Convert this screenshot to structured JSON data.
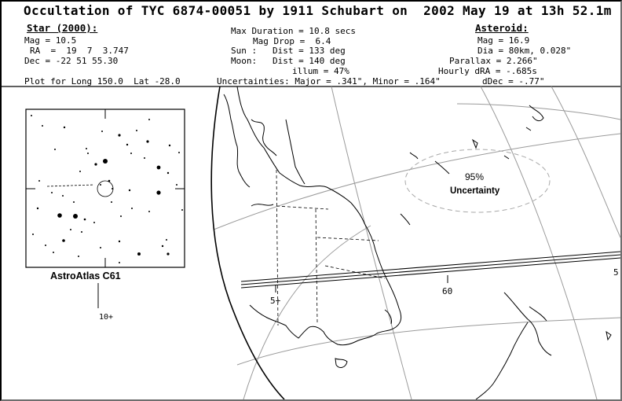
{
  "title": "Occultation of TYC 6874-00051 by 1911 Schubart on  2002 May 19 at 13h 52.1m",
  "star": {
    "header": "Star (2000):",
    "mag": "Mag = 10.5",
    "ra": "RA  =  19  7  3.747",
    "dec": "Dec = -22 51 55.30"
  },
  "event": {
    "max_duration": "Max Duration = 10.8 secs",
    "mag_drop": "Mag Drop =  6.4",
    "sun": "Sun :   Dist = 133 deg",
    "moon": "Moon:   Dist = 140 deg",
    "illum": "illum = 47%"
  },
  "asteroid": {
    "header": "Asteroid:",
    "mag": "Mag = 16.9",
    "dia": "Dia = 80km, 0.028\"",
    "parallax": "Parallax = 2.266\"",
    "hourly_dra": "Hourly dRA = -.685s",
    "ddec": "dDec = -.77\""
  },
  "plot_for": "Plot for Long 150.0  Lat -28.0",
  "uncertainties": "Uncertainties: Major = .341\", Minor = .164\"",
  "star_chart": {
    "caption": "AstroAtlas C61",
    "scale_label": "10+"
  },
  "map": {
    "ellipse_percent": "95%",
    "ellipse_label": "Uncertainty",
    "grid_labels": [
      "60",
      "5+",
      "5"
    ]
  },
  "colors": {
    "ink": "#000000",
    "grid_line": "#9a9a9a",
    "ellipse_dash": "#a8a8a8",
    "frame_shadow": "#6e6e6e",
    "background": "#ffffff"
  }
}
